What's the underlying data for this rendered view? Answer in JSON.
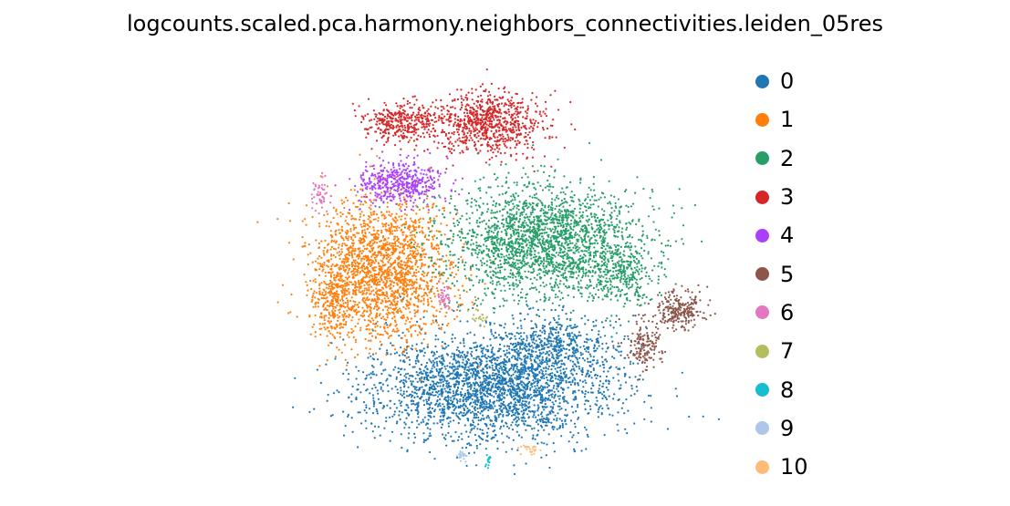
{
  "chart_data": {
    "type": "scatter",
    "title": "logcounts.scaled.pca.harmony.neighbors_connectivities.leiden_05res",
    "xlabel": "",
    "ylabel": "",
    "axes_visible": false,
    "grid": false,
    "legend_position": "right",
    "legend": [
      {
        "label": "0",
        "color": "#1f77b4"
      },
      {
        "label": "1",
        "color": "#ff7f0e"
      },
      {
        "label": "2",
        "color": "#279e68"
      },
      {
        "label": "3",
        "color": "#d62728"
      },
      {
        "label": "4",
        "color": "#aa40fc"
      },
      {
        "label": "5",
        "color": "#8c564b"
      },
      {
        "label": "6",
        "color": "#e377c2"
      },
      {
        "label": "7",
        "color": "#b5bd61"
      },
      {
        "label": "8",
        "color": "#17becf"
      },
      {
        "label": "9",
        "color": "#aec7e8"
      },
      {
        "label": "10",
        "color": "#ffbb78"
      }
    ]
  }
}
